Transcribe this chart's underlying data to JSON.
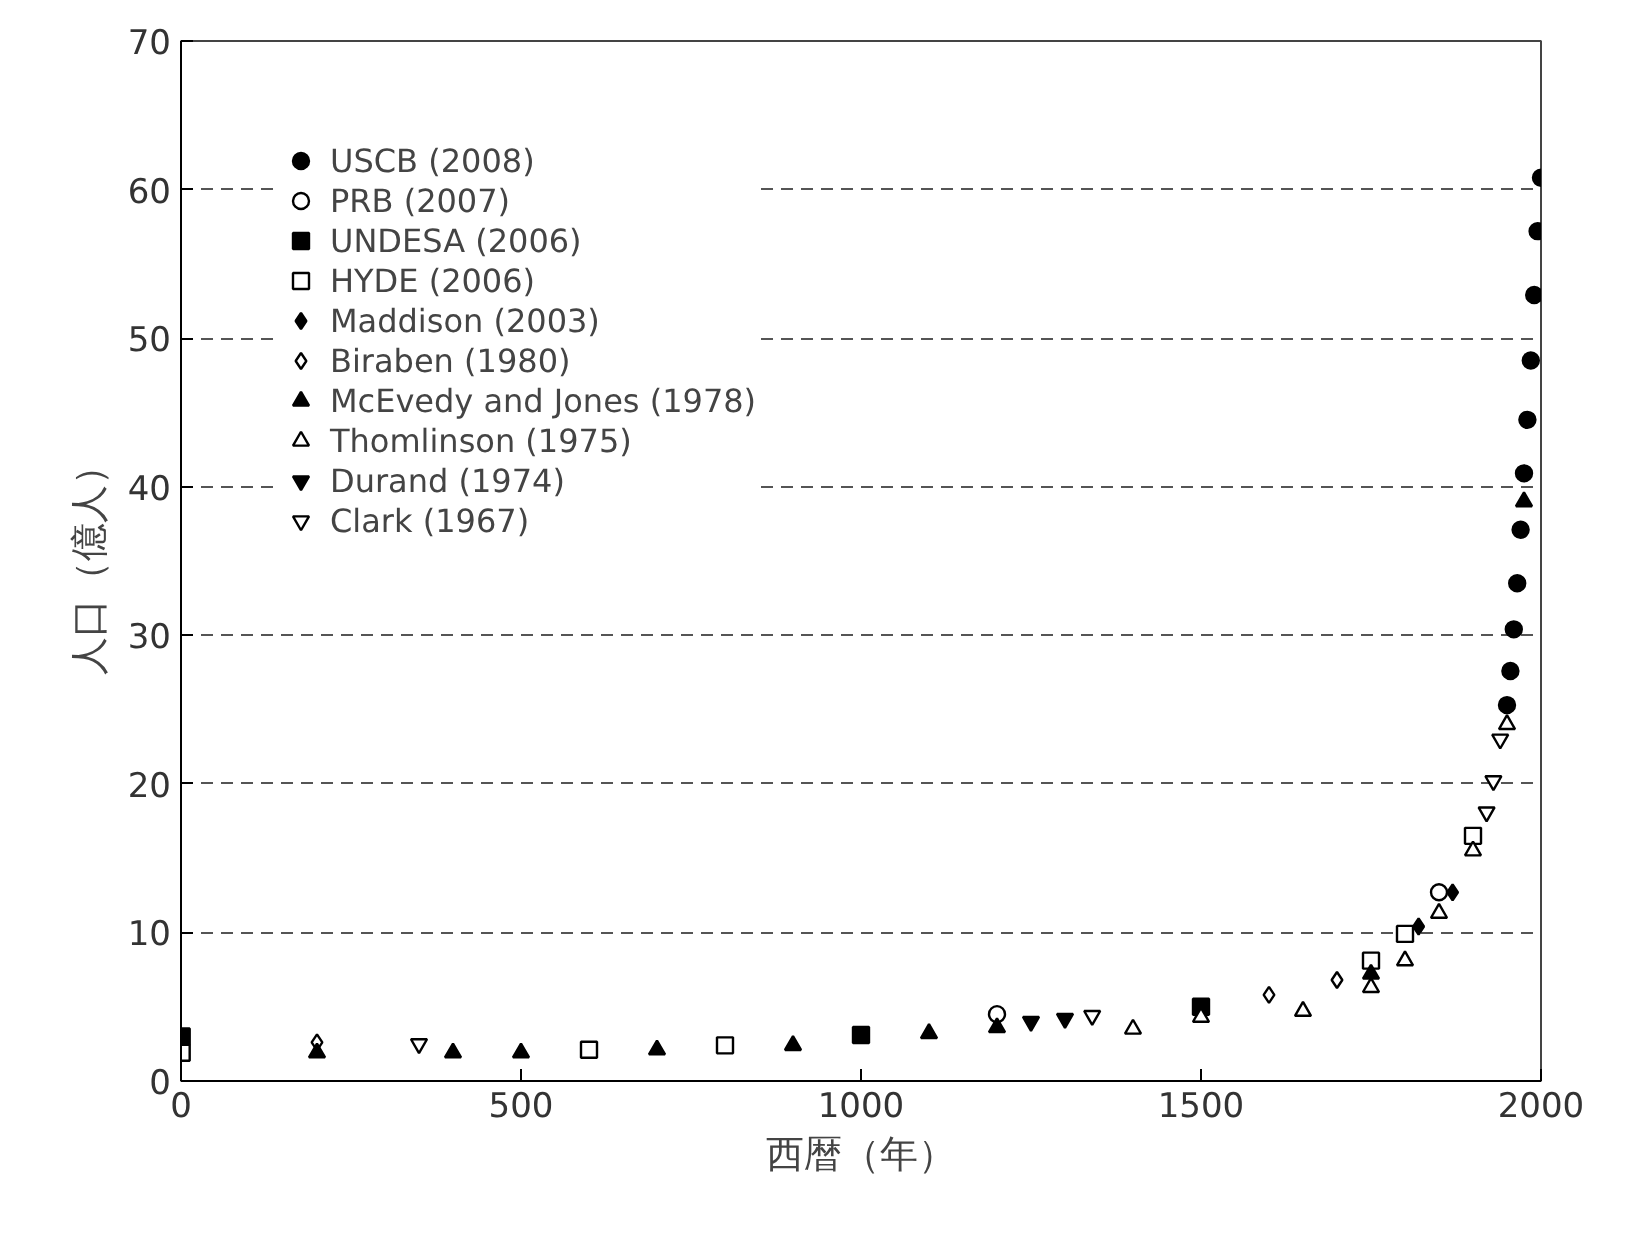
{
  "chart_data": {
    "type": "scatter",
    "xlabel": "西暦（年）",
    "ylabel": "人口（億人）",
    "xlim": [
      0,
      2000
    ],
    "ylim": [
      0,
      70
    ],
    "xticks": [
      0,
      500,
      1000,
      1500,
      2000
    ],
    "yticks": [
      0,
      10,
      20,
      30,
      40,
      50,
      60,
      70
    ],
    "grid": "y",
    "legend": "top left",
    "series": [
      {
        "name": "USCB (2008)",
        "color": "#000000",
        "marker": "circle",
        "x": [
          1950,
          1955,
          1960,
          1965,
          1970,
          1975,
          1980,
          1985,
          1990,
          1995,
          2000
        ],
        "values": [
          25.3,
          27.6,
          30.4,
          33.5,
          37.1,
          40.9,
          44.5,
          48.5,
          52.9,
          57.2,
          60.8
        ]
      },
      {
        "name": "PRB (2007)",
        "color": "#ffffff",
        "marker": "circle",
        "x": [
          1200,
          1850
        ],
        "values": [
          4.5,
          12.7
        ]
      },
      {
        "name": "UNDESA (2006)",
        "color": "#000000",
        "marker": "square",
        "x": [
          1,
          1000,
          1500
        ],
        "values": [
          3.0,
          3.1,
          5.0
        ]
      },
      {
        "name": "HYDE (2006)",
        "color": "#ffffff",
        "marker": "square",
        "x": [
          1,
          600,
          800,
          1750,
          1800,
          1900
        ],
        "values": [
          1.9,
          2.1,
          2.4,
          8.1,
          9.9,
          16.5
        ]
      },
      {
        "name": "Maddison (2003)",
        "color": "#000000",
        "marker": "diamond",
        "x": [
          1820,
          1870
        ],
        "values": [
          10.4,
          12.7
        ]
      },
      {
        "name": "Biraben (1980)",
        "color": "#ffffff",
        "marker": "diamond",
        "x": [
          200,
          1600,
          1700
        ],
        "values": [
          2.6,
          5.8,
          6.8
        ]
      },
      {
        "name": "McEvedy and Jones (1978)",
        "color": "#000000",
        "marker": "triangle",
        "x": [
          200,
          400,
          500,
          700,
          900,
          1100,
          1200,
          1750,
          1975
        ],
        "values": [
          1.9,
          1.9,
          1.9,
          2.1,
          2.4,
          3.2,
          3.6,
          7.2,
          39.0
        ]
      },
      {
        "name": "Thomlinson (1975)",
        "color": "#ffffff",
        "marker": "triangle",
        "x": [
          1400,
          1500,
          1650,
          1750,
          1800,
          1850,
          1900,
          1950
        ],
        "values": [
          3.5,
          4.3,
          4.7,
          6.3,
          8.1,
          11.3,
          15.5,
          24.0
        ]
      },
      {
        "name": "Durand (1974)",
        "color": "#000000",
        "x": [
          1250,
          1300
        ],
        "values": [
          4.0,
          4.2
        ]
      },
      {
        "name": "Clark (1967)",
        "color": "#ffffff",
        "x": [
          350,
          1340,
          1920,
          1930,
          1940
        ],
        "values": [
          2.5,
          4.4,
          18.1,
          20.2,
          23.0
        ]
      }
    ]
  }
}
